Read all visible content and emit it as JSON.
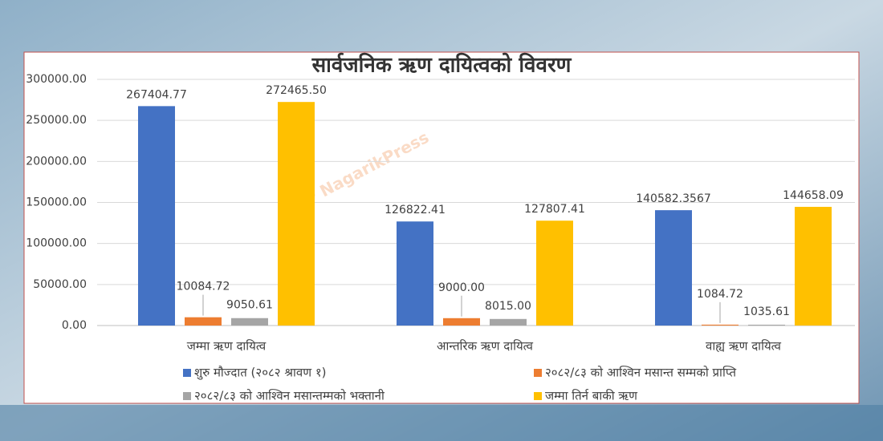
{
  "chart_data": {
    "type": "bar",
    "title": "सार्वजनिक ऋण दायित्वको विवरण",
    "watermark": "NP NagarikPress",
    "categories": [
      "जम्मा ऋण दायित्व",
      "आन्तरिक ऋण दायित्व",
      "वाह्य ऋण दायित्व"
    ],
    "series": [
      {
        "name": "शुरु मौज्दात (२०८२ श्रावण १)",
        "color": "#4472c4",
        "values": [
          267404.77,
          126822.41,
          140582.3567
        ],
        "value_labels": [
          "267404.77",
          "126822.41",
          "140582.3567"
        ]
      },
      {
        "name": "२०८२/८३ को आश्विन मसान्त सम्मको प्राप्ति",
        "color": "#ed7d31",
        "values": [
          10084.72,
          9000,
          1084.72
        ],
        "value_labels": [
          "10084.72",
          "9000.00",
          "1084.72"
        ]
      },
      {
        "name": "२०८२/८३ को आश्विन मसान्तम्मको भक्तानी",
        "color": "#a5a5a5",
        "values": [
          9050.61,
          8015,
          1035.61
        ],
        "value_labels": [
          "9050.61",
          "8015.00",
          "1035.61"
        ]
      },
      {
        "name": "जम्मा तिर्न बाकी ऋण",
        "color": "#ffc000",
        "values": [
          272465.5,
          127807.41,
          144658.09
        ],
        "value_labels": [
          "272465.50",
          "127807.41",
          "144658.09"
        ]
      }
    ],
    "ylim": [
      0,
      300000
    ],
    "yticks": [
      {
        "value": 0,
        "label": "0.00"
      },
      {
        "value": 50000,
        "label": "50000.00"
      },
      {
        "value": 100000,
        "label": "100000.00"
      },
      {
        "value": 150000,
        "label": "150000.00"
      },
      {
        "value": 200000,
        "label": "200000.00"
      },
      {
        "value": 250000,
        "label": "250000.00"
      },
      {
        "value": 300000,
        "label": "300000.00"
      }
    ],
    "grid": true,
    "legend": "bottom"
  }
}
